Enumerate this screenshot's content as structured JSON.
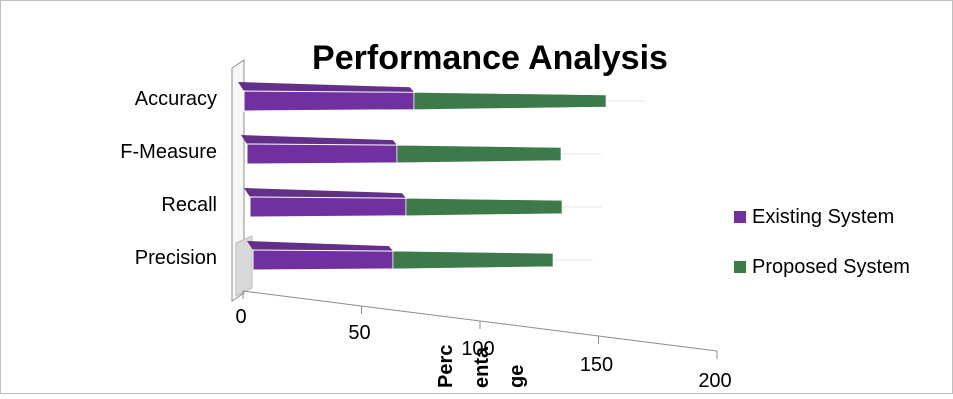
{
  "chart_data": {
    "type": "bar",
    "orientation": "horizontal",
    "stacked": true,
    "perspective": "3d",
    "title": "Performance Analysis",
    "xlabel": "Percentage",
    "xlabel_lines": [
      "Perc",
      "enta",
      "ge"
    ],
    "ylabel": "",
    "categories": [
      "Precision",
      "Recall",
      "F-Measure",
      "Accuracy"
    ],
    "series": [
      {
        "name": "Existing System",
        "values": [
          70,
          78,
          75,
          85
        ]
      },
      {
        "name": "Proposed System",
        "values": [
          80,
          78,
          82,
          96
        ]
      }
    ],
    "xlim": [
      0,
      200
    ],
    "xticks": [
      "0",
      "50",
      "100",
      "150",
      "200"
    ],
    "grid": false,
    "legend_position": "right",
    "colors": {
      "Existing System": "#7030a0",
      "Proposed System": "#3d7a4a"
    }
  }
}
